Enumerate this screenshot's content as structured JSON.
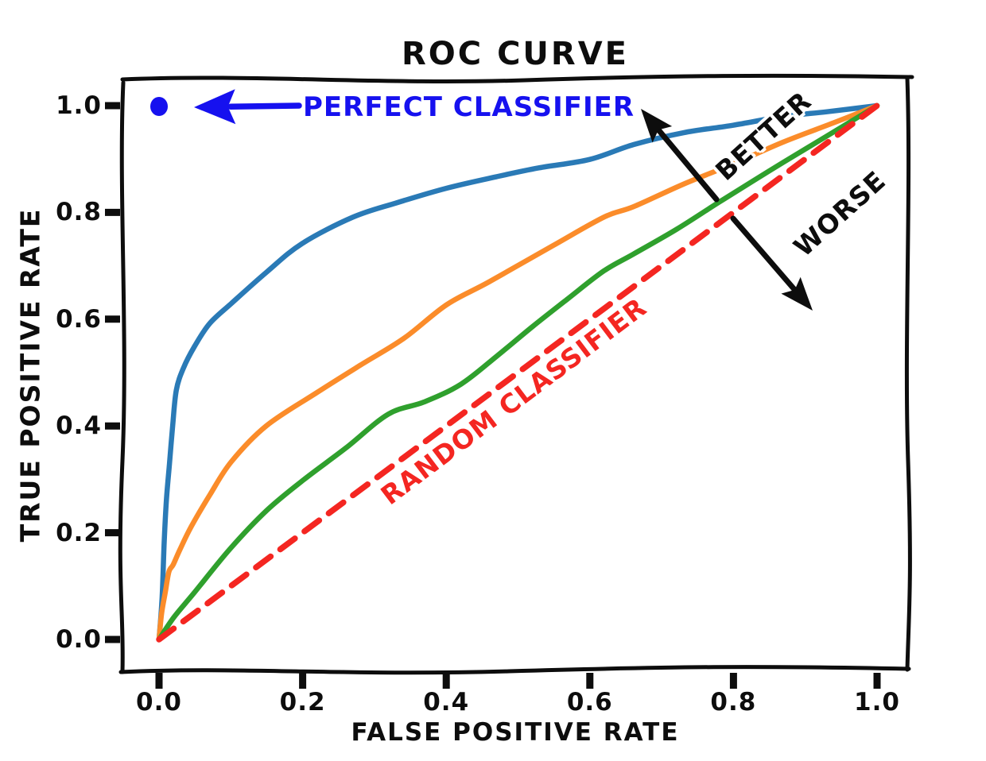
{
  "title": "ROC CURVE",
  "axes": {
    "x_label": "FALSE POSITIVE RATE",
    "y_label": "TRUE POSITIVE RATE",
    "x_ticks": [
      "0.0",
      "0.2",
      "0.4",
      "0.6",
      "0.8",
      "1.0"
    ],
    "y_ticks": [
      "0.0",
      "0.2",
      "0.4",
      "0.6",
      "0.8",
      "1.0"
    ]
  },
  "annotations": {
    "perfect": {
      "label": "PERFECT CLASSIFIER",
      "color": "#1611ef"
    },
    "random": {
      "label": "RANDOM CLASSIFIER",
      "color": "#f42621"
    },
    "better": {
      "label": "BETTER",
      "color": "#0d0d0d"
    },
    "worse": {
      "label": "WORSE",
      "color": "#0d0d0d"
    }
  },
  "colors": {
    "frame": "#0d0d0d",
    "blue_curve": "#2a7ab6",
    "orange_curve": "#fb8c2a",
    "green_curve": "#2fa02d",
    "random_red": "#f42621",
    "perfect_blue": "#1611ef"
  },
  "chart_data": {
    "type": "line",
    "title": "ROC CURVE",
    "xlabel": "FALSE POSITIVE RATE",
    "ylabel": "TRUE POSITIVE RATE",
    "xlim": [
      0,
      1
    ],
    "ylim": [
      0,
      1
    ],
    "x_tick_values": [
      0,
      0.2,
      0.4,
      0.6,
      0.8,
      1.0
    ],
    "y_tick_values": [
      0,
      0.2,
      0.4,
      0.6,
      0.8,
      1.0
    ],
    "grid": false,
    "legend": "none (inline annotations)",
    "style": "xkcd hand-drawn",
    "series": [
      {
        "name": "blue-roc-curve-best",
        "color": "#2a7ab6",
        "dash": false,
        "points": [
          [
            0,
            0
          ],
          [
            0.004,
            0.08
          ],
          [
            0.008,
            0.18
          ],
          [
            0.011,
            0.26
          ],
          [
            0.014,
            0.33
          ],
          [
            0.018,
            0.4
          ],
          [
            0.024,
            0.465
          ],
          [
            0.035,
            0.51
          ],
          [
            0.05,
            0.55
          ],
          [
            0.07,
            0.59
          ],
          [
            0.1,
            0.63
          ],
          [
            0.15,
            0.69
          ],
          [
            0.2,
            0.74
          ],
          [
            0.27,
            0.79
          ],
          [
            0.33,
            0.82
          ],
          [
            0.4,
            0.845
          ],
          [
            0.47,
            0.865
          ],
          [
            0.53,
            0.885
          ],
          [
            0.6,
            0.9
          ],
          [
            0.66,
            0.925
          ],
          [
            0.73,
            0.95
          ],
          [
            0.8,
            0.965
          ],
          [
            0.87,
            0.978
          ],
          [
            0.93,
            0.988
          ],
          [
            1,
            1
          ]
        ]
      },
      {
        "name": "orange-roc-curve-medium",
        "color": "#fb8c2a",
        "dash": false,
        "points": [
          [
            0,
            0
          ],
          [
            0.004,
            0.05
          ],
          [
            0.008,
            0.09
          ],
          [
            0.013,
            0.125
          ],
          [
            0.02,
            0.14
          ],
          [
            0.03,
            0.17
          ],
          [
            0.045,
            0.21
          ],
          [
            0.07,
            0.27
          ],
          [
            0.1,
            0.335
          ],
          [
            0.15,
            0.4
          ],
          [
            0.22,
            0.46
          ],
          [
            0.28,
            0.515
          ],
          [
            0.34,
            0.565
          ],
          [
            0.4,
            0.625
          ],
          [
            0.46,
            0.67
          ],
          [
            0.55,
            0.74
          ],
          [
            0.62,
            0.79
          ],
          [
            0.66,
            0.81
          ],
          [
            0.73,
            0.855
          ],
          [
            0.8,
            0.89
          ],
          [
            0.87,
            0.93
          ],
          [
            0.94,
            0.97
          ],
          [
            1,
            1
          ]
        ]
      },
      {
        "name": "green-roc-curve-weak",
        "color": "#2fa02d",
        "dash": false,
        "points": [
          [
            0,
            0
          ],
          [
            0.02,
            0.04
          ],
          [
            0.05,
            0.09
          ],
          [
            0.1,
            0.17
          ],
          [
            0.15,
            0.24
          ],
          [
            0.2,
            0.3
          ],
          [
            0.26,
            0.36
          ],
          [
            0.32,
            0.42
          ],
          [
            0.37,
            0.445
          ],
          [
            0.42,
            0.48
          ],
          [
            0.47,
            0.53
          ],
          [
            0.52,
            0.585
          ],
          [
            0.57,
            0.64
          ],
          [
            0.62,
            0.69
          ],
          [
            0.66,
            0.72
          ],
          [
            0.72,
            0.77
          ],
          [
            0.78,
            0.82
          ],
          [
            0.85,
            0.875
          ],
          [
            0.92,
            0.935
          ],
          [
            1,
            1
          ]
        ]
      },
      {
        "name": "random-classifier-diagonal",
        "color": "#f42621",
        "dash": true,
        "points": [
          [
            0,
            0
          ],
          [
            1,
            1
          ]
        ]
      }
    ],
    "perfect_classifier_point": {
      "x": 0,
      "y": 1,
      "color": "#1611ef"
    },
    "annotations": [
      {
        "text": "PERFECT CLASSIFIER",
        "color": "#1611ef",
        "arrow": "points left to the (0,1) dot"
      },
      {
        "text": "BETTER",
        "color": "#0d0d0d",
        "arrow": "points up-left toward better curves"
      },
      {
        "text": "WORSE",
        "color": "#0d0d0d",
        "arrow": "points down-right toward diagonal"
      },
      {
        "text": "RANDOM CLASSIFIER",
        "color": "#f42621",
        "arrow": "label along red dashed diagonal"
      }
    ]
  }
}
